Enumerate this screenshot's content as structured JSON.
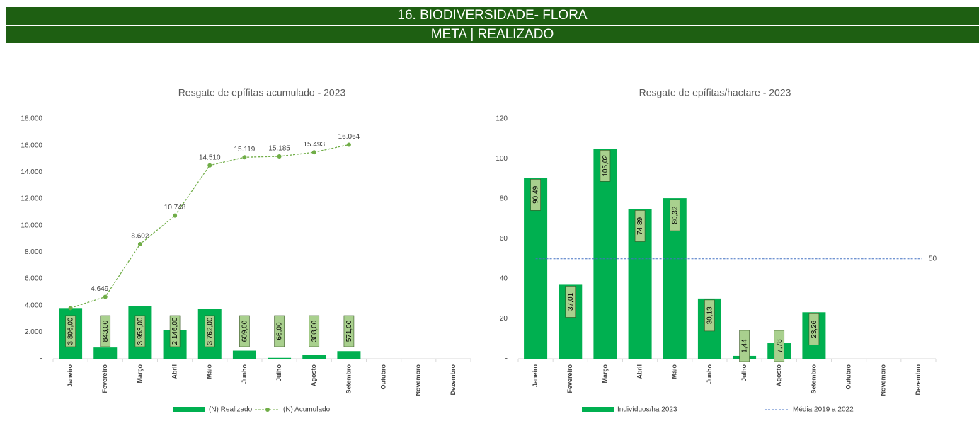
{
  "header": {
    "title": "16.  BIODIVERSIDADE- FLORA",
    "subtitle": "META | REALIZADO"
  },
  "chart_data": [
    {
      "type": "bar",
      "title": "Resgate de epífitas acumulado - 2023",
      "categories": [
        "Janeiro",
        "Fevereiro",
        "Março",
        "Abril",
        "Maio",
        "Junho",
        "Julho",
        "Agosto",
        "Setembro",
        "Outubro",
        "Novembro",
        "Dezembro"
      ],
      "series": [
        {
          "name": "(N) Realizado",
          "type": "bar",
          "color": "#00b050",
          "values": [
            3806,
            843,
            3953,
            2146,
            3762,
            609,
            66,
            308,
            571,
            null,
            null,
            null
          ],
          "value_labels": [
            "3.806,00",
            "843,00",
            "3.953,00",
            "2.146,00",
            "3.762,00",
            "609,00",
            "66,00",
            "308,00",
            "571,00",
            null,
            null,
            null
          ]
        },
        {
          "name": "(N) Acumulado",
          "type": "line",
          "color": "#70ad47",
          "values": [
            3806,
            4649,
            8602,
            10748,
            14510,
            15119,
            15185,
            15493,
            16064,
            null,
            null,
            null
          ],
          "value_labels": [
            null,
            "4.649",
            "8.602",
            "10.748",
            "14.510",
            "15.119",
            "15.185",
            "15.493",
            "16.064",
            null,
            null,
            null
          ]
        }
      ],
      "ylim": [
        0,
        18000
      ],
      "yticks": [
        {
          "value": 0,
          "label": "-"
        },
        {
          "value": 2000,
          "label": "2.000"
        },
        {
          "value": 4000,
          "label": "4.000"
        },
        {
          "value": 6000,
          "label": "6.000"
        },
        {
          "value": 8000,
          "label": "8.000"
        },
        {
          "value": 10000,
          "label": "10.000"
        },
        {
          "value": 12000,
          "label": "12.000"
        },
        {
          "value": 14000,
          "label": "14.000"
        },
        {
          "value": 16000,
          "label": "16.000"
        },
        {
          "value": 18000,
          "label": "18.000"
        }
      ],
      "legend": "bottom"
    },
    {
      "type": "bar",
      "title": "Resgate de epífitas/hactare - 2023",
      "categories": [
        "Janeiro",
        "Fevereiro",
        "Março",
        "Abril",
        "Maio",
        "Junho",
        "Julho",
        "Agosto",
        "Setembro",
        "Outubro",
        "Novembro",
        "Dezembro"
      ],
      "series": [
        {
          "name": "Indivíduos/ha 2023",
          "type": "bar",
          "color": "#00b050",
          "values": [
            90.49,
            37.01,
            105.02,
            74.89,
            80.32,
            30.13,
            1.44,
            7.78,
            23.26,
            null,
            null,
            null
          ],
          "value_labels": [
            "90,49",
            "37,01",
            "105,02",
            "74,89",
            "80,32",
            "30,13",
            "1,44",
            "7,78",
            "23,26",
            null,
            null,
            null
          ]
        }
      ],
      "reference_lines": [
        {
          "name": "Média 2019 a 2022",
          "value": 50,
          "color": "#4472c4"
        }
      ],
      "ylim": [
        0,
        120
      ],
      "yticks": [
        {
          "value": 0,
          "label": "-"
        },
        20,
        40,
        60,
        80,
        100,
        120
      ],
      "legend": "bottom"
    }
  ]
}
